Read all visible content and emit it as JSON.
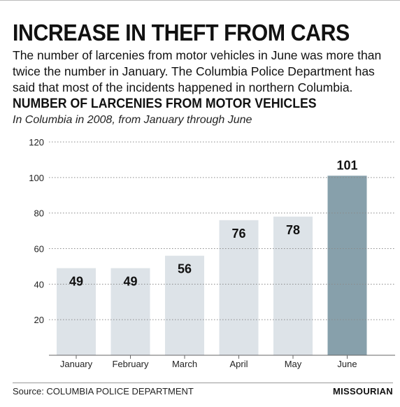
{
  "headline": "INCREASE IN THEFT FROM CARS",
  "intro": "The number of larcenies from motor vehicles in June was more than twice the number in January. The Columbia Police Department has said that most of the incidents happened in northern Columbia.",
  "source": "Source: COLUMBIA POLICE DEPARTMENT",
  "brand": "MISSOURIAN",
  "chart_data": {
    "type": "bar",
    "title": "NUMBER OF LARCENIES FROM MOTOR VEHICLES",
    "subtitle": "In Columbia in 2008, from January through June",
    "categories": [
      "January",
      "February",
      "March",
      "April",
      "May",
      "June"
    ],
    "values": [
      49,
      49,
      56,
      76,
      78,
      101
    ],
    "ylim": [
      0,
      120
    ],
    "yticks": [
      20,
      40,
      60,
      80,
      100,
      120
    ],
    "grid": "dotted-horizontal",
    "xlabel": "",
    "ylabel": "",
    "colors": {
      "bar": "#dde3e8",
      "highlight_bar": "#87a0ab",
      "highlight_category": "June",
      "grid": "#8a8a8a"
    }
  }
}
